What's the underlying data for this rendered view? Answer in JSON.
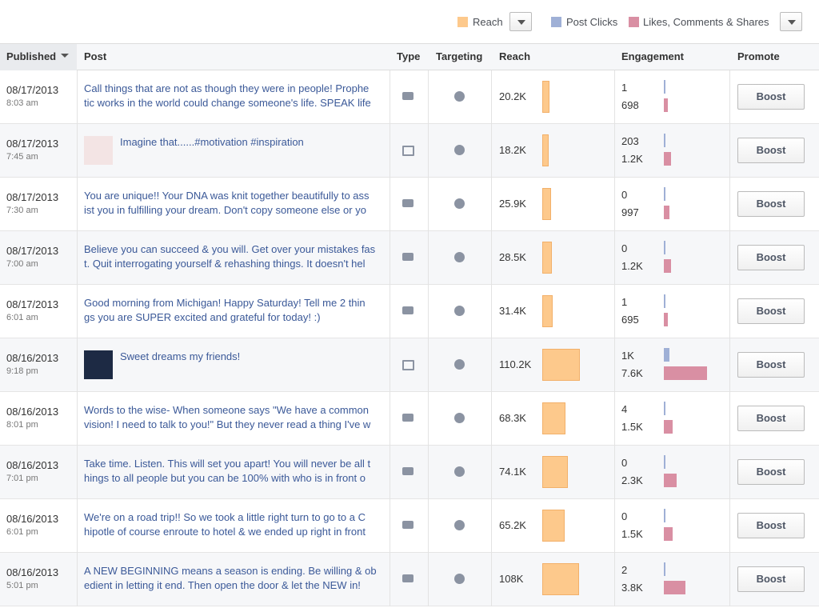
{
  "legend": {
    "reach": "Reach",
    "clicks": "Post Clicks",
    "likes": "Likes, Comments & Shares"
  },
  "table": {
    "headers": [
      "Published",
      "Post",
      "Type",
      "Targeting",
      "Reach",
      "Engagement",
      "Promote"
    ],
    "boost_label": "Boost",
    "rows": [
      {
        "date": "08/17/2013",
        "time": "8:03 am",
        "lines": [
          "Call things that are not as though they were in people! Prophe",
          "tic works in the world could change someone's life. SPEAK life"
        ],
        "reach": {
          "value": 20200,
          "label": "20.2K"
        },
        "clicks": {
          "value": 1,
          "label": "1"
        },
        "likes": {
          "value": 698,
          "label": "698"
        }
      },
      {
        "date": "08/17/2013",
        "time": "7:45 am",
        "lines": [
          "Imagine that......#motivation #inspiration"
        ],
        "reach": {
          "value": 18200,
          "label": "18.2K"
        },
        "clicks": {
          "value": 203,
          "label": "203"
        },
        "likes": {
          "value": 1200,
          "label": "1.2K"
        }
      },
      {
        "date": "08/17/2013",
        "time": "7:30 am",
        "lines": [
          "You are unique!! Your DNA was knit together beautifully to ass",
          "ist you in fulfilling your dream. Don't copy someone else or yo"
        ],
        "reach": {
          "value": 25900,
          "label": "25.9K"
        },
        "clicks": {
          "value": 0,
          "label": "0"
        },
        "likes": {
          "value": 997,
          "label": "997"
        }
      },
      {
        "date": "08/17/2013",
        "time": "7:00 am",
        "lines": [
          "Believe you can succeed & you will. Get over your mistakes fas",
          "t. Quit interrogating yourself & rehashing things. It doesn't hel"
        ],
        "reach": {
          "value": 28500,
          "label": "28.5K"
        },
        "clicks": {
          "value": 0,
          "label": "0"
        },
        "likes": {
          "value": 1200,
          "label": "1.2K"
        }
      },
      {
        "date": "08/17/2013",
        "time": "6:01 am",
        "lines": [
          "Good morning from Michigan! Happy Saturday! Tell me 2 thin",
          "gs you are SUPER excited and grateful for today! :)"
        ],
        "reach": {
          "value": 31400,
          "label": "31.4K"
        },
        "clicks": {
          "value": 1,
          "label": "1"
        },
        "likes": {
          "value": 695,
          "label": "695"
        }
      },
      {
        "date": "08/16/2013",
        "time": "9:18 pm",
        "lines": [
          "Sweet dreams my friends!"
        ],
        "reach": {
          "value": 110200,
          "label": "110.2K"
        },
        "clicks": {
          "value": 1000,
          "label": "1K"
        },
        "likes": {
          "value": 7600,
          "label": "7.6K"
        }
      },
      {
        "date": "08/16/2013",
        "time": "8:01 pm",
        "lines": [
          "Words to the wise- When someone says \"We have a common",
          "vision! I need to talk to you!\" But they never read a thing I've w"
        ],
        "reach": {
          "value": 68300,
          "label": "68.3K"
        },
        "clicks": {
          "value": 4,
          "label": "4"
        },
        "likes": {
          "value": 1500,
          "label": "1.5K"
        }
      },
      {
        "date": "08/16/2013",
        "time": "7:01 pm",
        "lines": [
          "Take time. Listen. This will set you apart! You will never be all t",
          "hings to all people but you can be 100% with who is in front o"
        ],
        "reach": {
          "value": 74100,
          "label": "74.1K"
        },
        "clicks": {
          "value": 0,
          "label": "0"
        },
        "likes": {
          "value": 2300,
          "label": "2.3K"
        }
      },
      {
        "date": "08/16/2013",
        "time": "6:01 pm",
        "lines": [
          "We're on a road trip!! So we took a little right turn to go to a C",
          "hipotle of course enroute to hotel & we ended up right in front"
        ],
        "reach": {
          "value": 65200,
          "label": "65.2K"
        },
        "clicks": {
          "value": 0,
          "label": "0"
        },
        "likes": {
          "value": 1500,
          "label": "1.5K"
        }
      },
      {
        "date": "08/16/2013",
        "time": "5:01 pm",
        "lines": [
          "A NEW BEGINNING means a season is ending. Be willing & ob",
          "edient in letting it end. Then open the door & let the NEW in!"
        ],
        "reach": {
          "value": 108000,
          "label": "108K"
        },
        "clicks": {
          "value": 2,
          "label": "2"
        },
        "likes": {
          "value": 3800,
          "label": "3.8K"
        }
      }
    ]
  }
}
